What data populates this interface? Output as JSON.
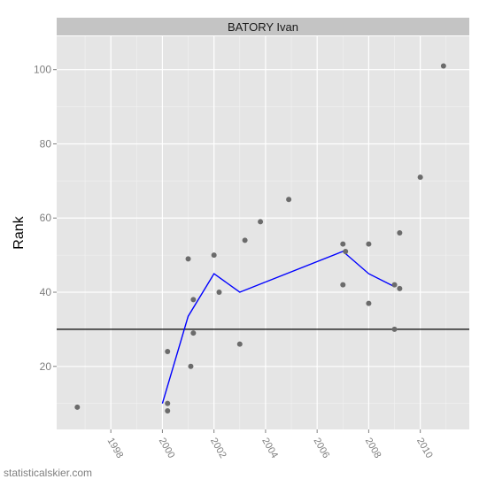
{
  "chart_data": {
    "type": "scatter",
    "facet_title": "BATORY Ivan",
    "xlabel": "",
    "ylabel": "Rank",
    "xlim": [
      1995.9,
      2011.9
    ],
    "ylim": [
      3,
      109
    ],
    "x_ticks": [
      1998,
      2000,
      2002,
      2004,
      2006,
      2008,
      2010
    ],
    "x_tick_labels": [
      "1998",
      "2000",
      "2002",
      "2004",
      "2006",
      "2008",
      "2010"
    ],
    "y_ticks": [
      20,
      40,
      60,
      80,
      100
    ],
    "y_tick_labels": [
      "20",
      "40",
      "60",
      "80",
      "100"
    ],
    "reference_line": {
      "y": 30,
      "color": "#000000"
    },
    "grid": true,
    "panel_background": "#e5e5e5",
    "strip_background": "#c4c4c4",
    "point_color": "#6b6b6b",
    "line_color": "#0000ff",
    "points": [
      {
        "x": 1996.7,
        "y": 9
      },
      {
        "x": 2000.2,
        "y": 24
      },
      {
        "x": 2000.2,
        "y": 10
      },
      {
        "x": 2000.2,
        "y": 8
      },
      {
        "x": 2001.0,
        "y": 49
      },
      {
        "x": 2001.1,
        "y": 20
      },
      {
        "x": 2001.2,
        "y": 38
      },
      {
        "x": 2001.2,
        "y": 29
      },
      {
        "x": 2002.0,
        "y": 50
      },
      {
        "x": 2002.2,
        "y": 40
      },
      {
        "x": 2003.0,
        "y": 26
      },
      {
        "x": 2003.2,
        "y": 54
      },
      {
        "x": 2003.8,
        "y": 59
      },
      {
        "x": 2004.9,
        "y": 65
      },
      {
        "x": 2007.0,
        "y": 53
      },
      {
        "x": 2007.1,
        "y": 51
      },
      {
        "x": 2007.0,
        "y": 42
      },
      {
        "x": 2008.0,
        "y": 53
      },
      {
        "x": 2008.0,
        "y": 37
      },
      {
        "x": 2009.0,
        "y": 42
      },
      {
        "x": 2009.0,
        "y": 30
      },
      {
        "x": 2009.2,
        "y": 56
      },
      {
        "x": 2009.2,
        "y": 41
      },
      {
        "x": 2010.0,
        "y": 71
      },
      {
        "x": 2010.9,
        "y": 101
      }
    ],
    "line": [
      {
        "x": 2000.0,
        "y": 10
      },
      {
        "x": 2001.0,
        "y": 33.5
      },
      {
        "x": 2002.0,
        "y": 45
      },
      {
        "x": 2003.0,
        "y": 40
      },
      {
        "x": 2007.0,
        "y": 51
      },
      {
        "x": 2008.0,
        "y": 45
      },
      {
        "x": 2009.0,
        "y": 41.5
      }
    ]
  },
  "watermark": "statisticalskier.com"
}
